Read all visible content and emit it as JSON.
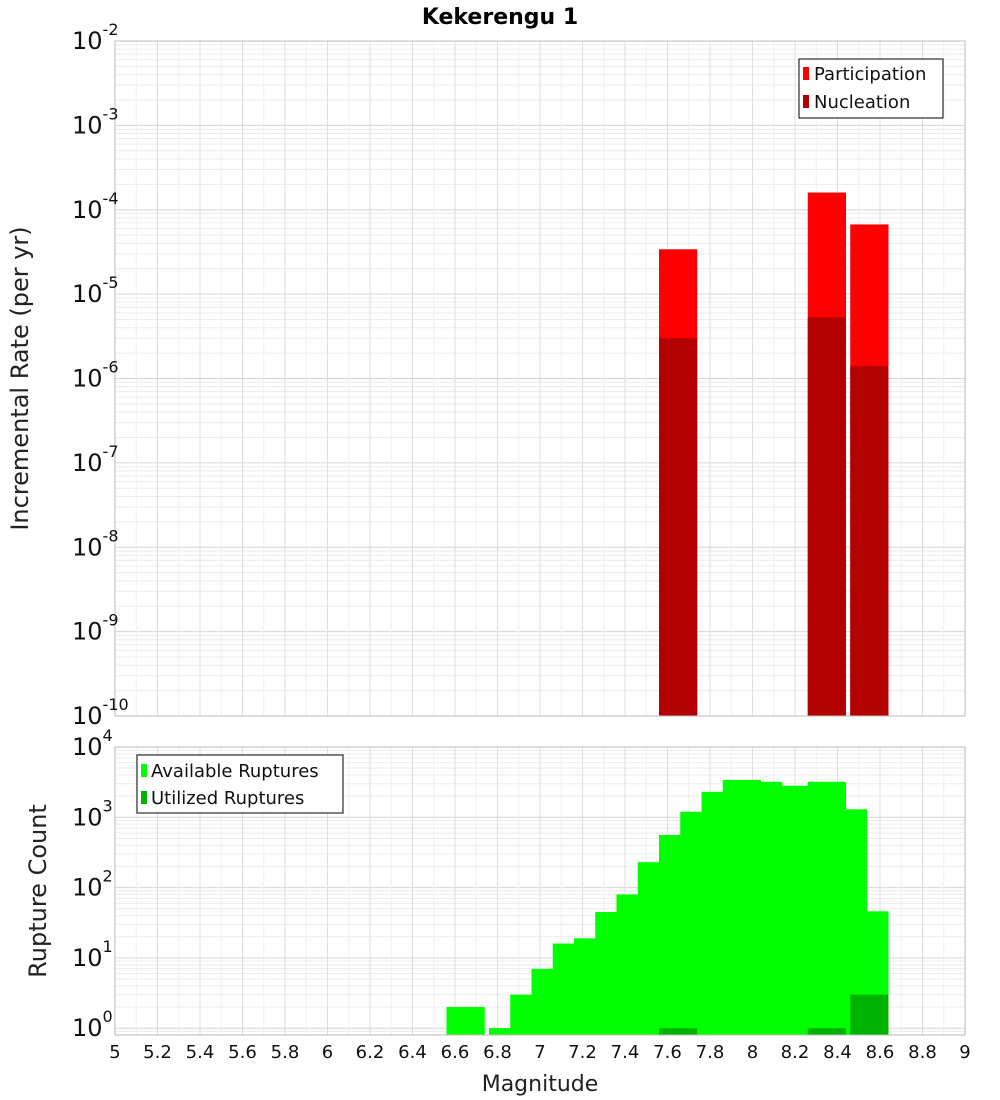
{
  "chart_data": [
    {
      "type": "bar",
      "title": "Kekerengu 1",
      "ylabel": "Incremental Rate (per yr)",
      "yscale": "log",
      "ylim": [
        1e-10,
        0.01
      ],
      "xlim": [
        5,
        9
      ],
      "yticks": [
        {
          "base": "10",
          "exp": "-10"
        },
        {
          "base": "10",
          "exp": "-9"
        },
        {
          "base": "10",
          "exp": "-8"
        },
        {
          "base": "10",
          "exp": "-7"
        },
        {
          "base": "10",
          "exp": "-6"
        },
        {
          "base": "10",
          "exp": "-5"
        },
        {
          "base": "10",
          "exp": "-4"
        },
        {
          "base": "10",
          "exp": "-3"
        },
        {
          "base": "10",
          "exp": "-2"
        }
      ],
      "legend_position": "top-right",
      "grid": true,
      "series": [
        {
          "name": "Participation",
          "color": "#ff0000",
          "x": [
            7.65,
            8.35,
            8.55
          ],
          "values": [
            3.4e-05,
            0.00016,
            6.7e-05
          ]
        },
        {
          "name": "Nucleation",
          "color": "#b30000",
          "x": [
            7.65,
            8.35,
            8.55
          ],
          "values": [
            3e-06,
            5.3e-06,
            1.4e-06
          ]
        }
      ]
    },
    {
      "type": "bar",
      "ylabel": "Rupture Count",
      "xlabel": "Magnitude",
      "yscale": "log",
      "ylim": [
        0.8,
        10000
      ],
      "xlim": [
        5,
        9
      ],
      "xticks": [
        "5",
        "5.2",
        "5.4",
        "5.6",
        "5.8",
        "6",
        "6.2",
        "6.4",
        "6.6",
        "6.8",
        "7",
        "7.2",
        "7.4",
        "7.6",
        "7.8",
        "8",
        "8.2",
        "8.4",
        "8.6",
        "8.8",
        "9"
      ],
      "yticks": [
        {
          "base": "10",
          "exp": "0",
          "value": 1
        },
        {
          "base": "10",
          "exp": "1",
          "value": 10
        },
        {
          "base": "10",
          "exp": "2",
          "value": 100
        },
        {
          "base": "10",
          "exp": "3",
          "value": 1000
        },
        {
          "base": "10",
          "exp": "4",
          "value": 10000
        }
      ],
      "legend_position": "top-left",
      "grid": true,
      "series": [
        {
          "name": "Available Ruptures",
          "color": "#00ff00",
          "x": [
            6.65,
            6.85,
            6.95,
            7.05,
            7.15,
            7.25,
            7.35,
            7.45,
            7.55,
            7.65,
            7.75,
            7.85,
            7.95,
            8.05,
            8.15,
            8.25,
            8.35,
            8.45,
            8.55
          ],
          "values": [
            2,
            1,
            3,
            7,
            16,
            19,
            45,
            80,
            230,
            560,
            1200,
            2300,
            3400,
            3200,
            2800,
            2800,
            3200,
            1300,
            46
          ]
        },
        {
          "name": "Utilized Ruptures",
          "color": "#00b300",
          "x": [
            7.65,
            8.35,
            8.55
          ],
          "values": [
            1,
            1,
            3
          ]
        }
      ]
    }
  ]
}
